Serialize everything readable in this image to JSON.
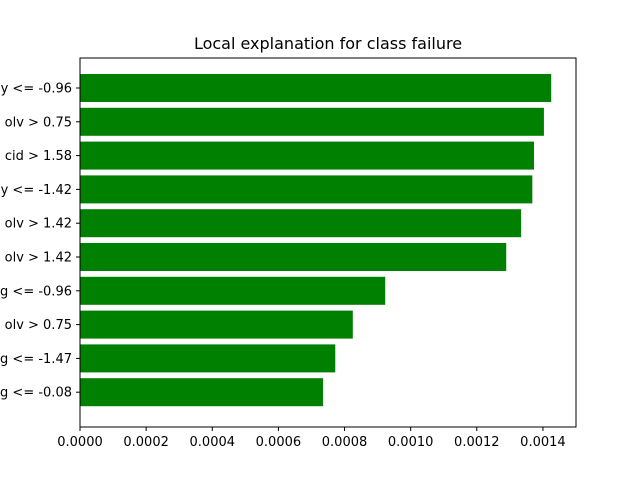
{
  "chart_data": {
    "type": "bar",
    "orientation": "horizontal",
    "title": "Local explanation for class failure",
    "xlabel": "",
    "ylabel": "",
    "xlim": [
      0,
      0.0015
    ],
    "x_ticks": [
      "0.0000",
      "0.0002",
      "0.0004",
      "0.0006",
      "0.0008",
      "0.0010",
      "0.0012",
      "0.0014"
    ],
    "x_tick_values": [
      0,
      0.0002,
      0.0004,
      0.0006,
      0.0008,
      0.001,
      0.0012,
      0.0014
    ],
    "categories": [
      "y <= -0.96",
      "olv > 0.75",
      "cid > 1.58",
      "y <= -1.42",
      "olv > 1.42",
      "olv > 1.42",
      "g <= -0.96",
      "olv > 0.75",
      "g <= -1.47",
      "g <= -0.08"
    ],
    "values": [
      0.001425,
      0.001403,
      0.001373,
      0.001368,
      0.001334,
      0.001289,
      0.000923,
      0.000825,
      0.000772,
      0.000735
    ],
    "bar_color": "#008000",
    "grid": false,
    "legend": "none"
  }
}
